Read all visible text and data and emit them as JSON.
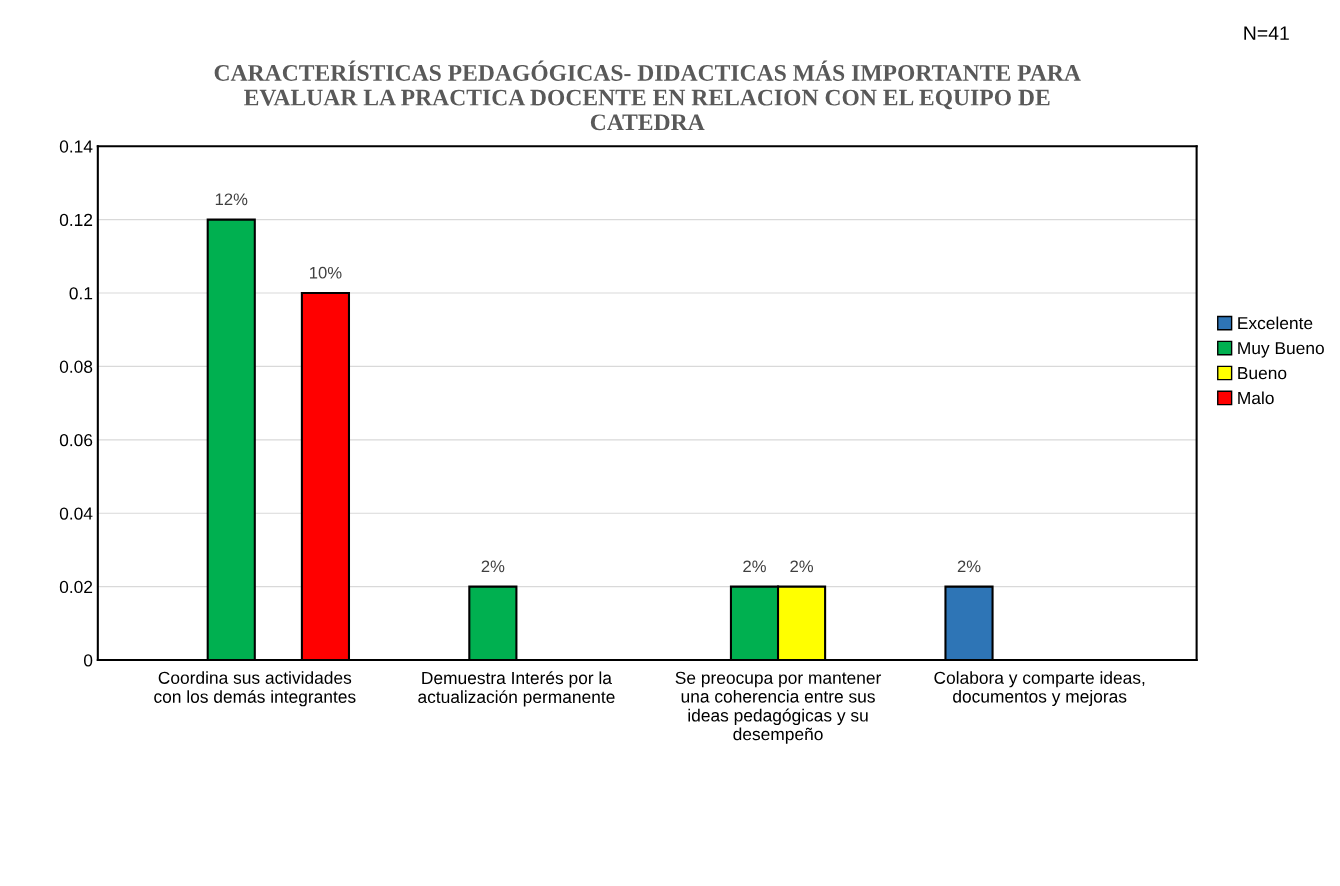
{
  "chart_data": {
    "type": "bar",
    "title": "CARACTERÍSTICAS PEDAGÓGICAS- DIDACTICAS  MÁS IMPORTANTE PARA EVALUAR  LA PRACTICA DOCENTE EN RELACION CON EL EQUIPO DE CATEDRA",
    "annotations": [
      "N=41"
    ],
    "categories": [
      "Coordina sus actividades con los demás integrantes",
      "Demuestra Interés por la actualización permanente",
      "Se preocupa por mantener una coherencia entre sus ideas pedagógicas y su desempeño",
      "Colabora y comparte ideas, documentos y mejoras"
    ],
    "series": [
      {
        "name": "Excelente",
        "color": "#2e75b6",
        "values": [
          null,
          null,
          null,
          0.02
        ],
        "value_labels": [
          null,
          null,
          null,
          "2%"
        ]
      },
      {
        "name": "Muy Bueno",
        "color": "#00b050",
        "values": [
          0.12,
          0.02,
          0.02,
          null
        ],
        "value_labels": [
          "12%",
          "2%",
          "2%",
          null
        ]
      },
      {
        "name": "Bueno",
        "color": "#ffff00",
        "values": [
          null,
          null,
          0.02,
          null
        ],
        "value_labels": [
          null,
          null,
          "2%",
          null
        ]
      },
      {
        "name": "Malo",
        "color": "#ff0000",
        "values": [
          0.1,
          null,
          null,
          null
        ],
        "value_labels": [
          "10%",
          null,
          null,
          null
        ]
      }
    ],
    "ylim": [
      0,
      0.14
    ],
    "yticks": [
      0,
      0.02,
      0.04,
      0.06,
      0.08,
      0.1,
      0.12,
      0.14
    ],
    "grid": "y",
    "legend": "right"
  }
}
